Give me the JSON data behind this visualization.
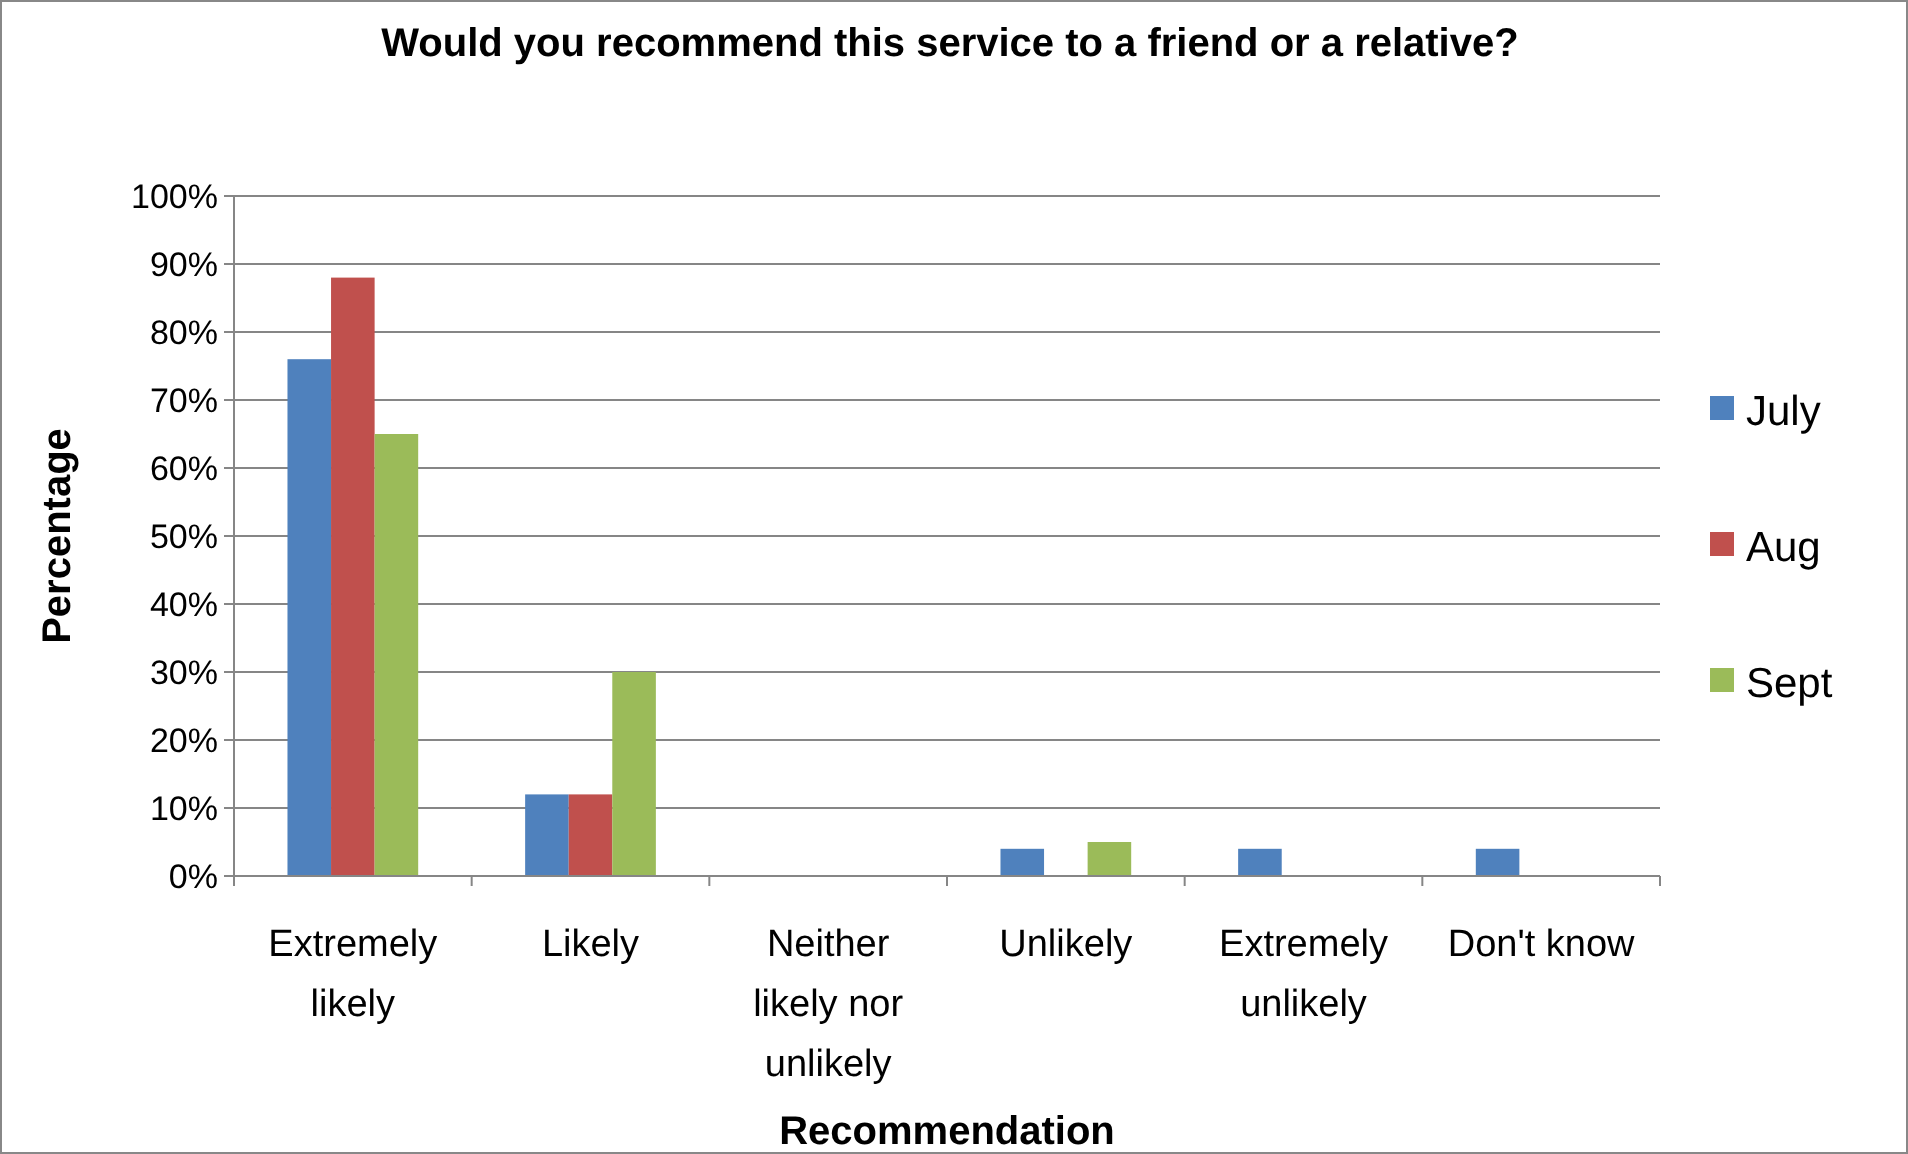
{
  "chart_data": {
    "type": "bar",
    "title": "Would you recommend this service to a friend or a relative?",
    "xlabel": "Recommendation",
    "ylabel": "Percentage",
    "categories": [
      "Extremely likely",
      "Likely",
      "Neither likely nor unlikely",
      "Unlikely",
      "Extremely unlikely",
      "Don't know"
    ],
    "series": [
      {
        "name": "July",
        "color": "#4f81bd",
        "values": [
          76,
          12,
          0,
          4,
          4,
          4
        ]
      },
      {
        "name": "Aug",
        "color": "#c0504d",
        "values": [
          88,
          12,
          0,
          0,
          0,
          0
        ]
      },
      {
        "name": "Sept",
        "color": "#9bbb59",
        "values": [
          65,
          30,
          0,
          5,
          0,
          0
        ]
      }
    ],
    "ylim": [
      0,
      100
    ],
    "yticks": [
      {
        "value": 0,
        "label": "0%"
      },
      {
        "value": 10,
        "label": "10%"
      },
      {
        "value": 20,
        "label": "20%"
      },
      {
        "value": 30,
        "label": "30%"
      },
      {
        "value": 40,
        "label": "40%"
      },
      {
        "value": 50,
        "label": "50%"
      },
      {
        "value": 60,
        "label": "60%"
      },
      {
        "value": 70,
        "label": "70%"
      },
      {
        "value": 80,
        "label": "80%"
      },
      {
        "value": 90,
        "label": "90%"
      },
      {
        "value": 100,
        "label": "100%"
      }
    ],
    "grid": "y",
    "legend": "right"
  }
}
